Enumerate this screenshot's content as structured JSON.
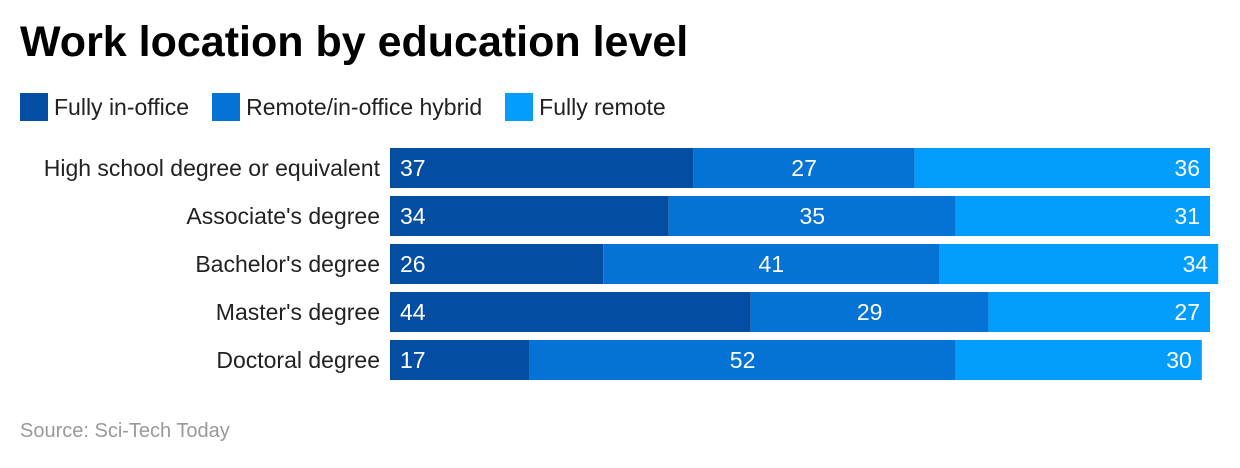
{
  "chart_data": {
    "type": "bar",
    "orientation": "horizontal",
    "stacked": true,
    "title": "Work location by education level",
    "categories": [
      "High school degree or equivalent",
      "Associate's degree",
      "Bachelor's degree",
      "Master's degree",
      "Doctoral degree"
    ],
    "series": [
      {
        "name": "Fully in-office",
        "color": "#034ea2",
        "values": [
          37,
          34,
          26,
          44,
          17
        ]
      },
      {
        "name": "Remote/in-office hybrid",
        "color": "#0572d5",
        "values": [
          27,
          35,
          41,
          29,
          52
        ]
      },
      {
        "name": "Fully remote",
        "color": "#039dfc",
        "values": [
          36,
          31,
          34,
          27,
          30
        ]
      }
    ],
    "legend_position": "top-left",
    "grid": false,
    "source": "Source: Sci-Tech Today"
  }
}
